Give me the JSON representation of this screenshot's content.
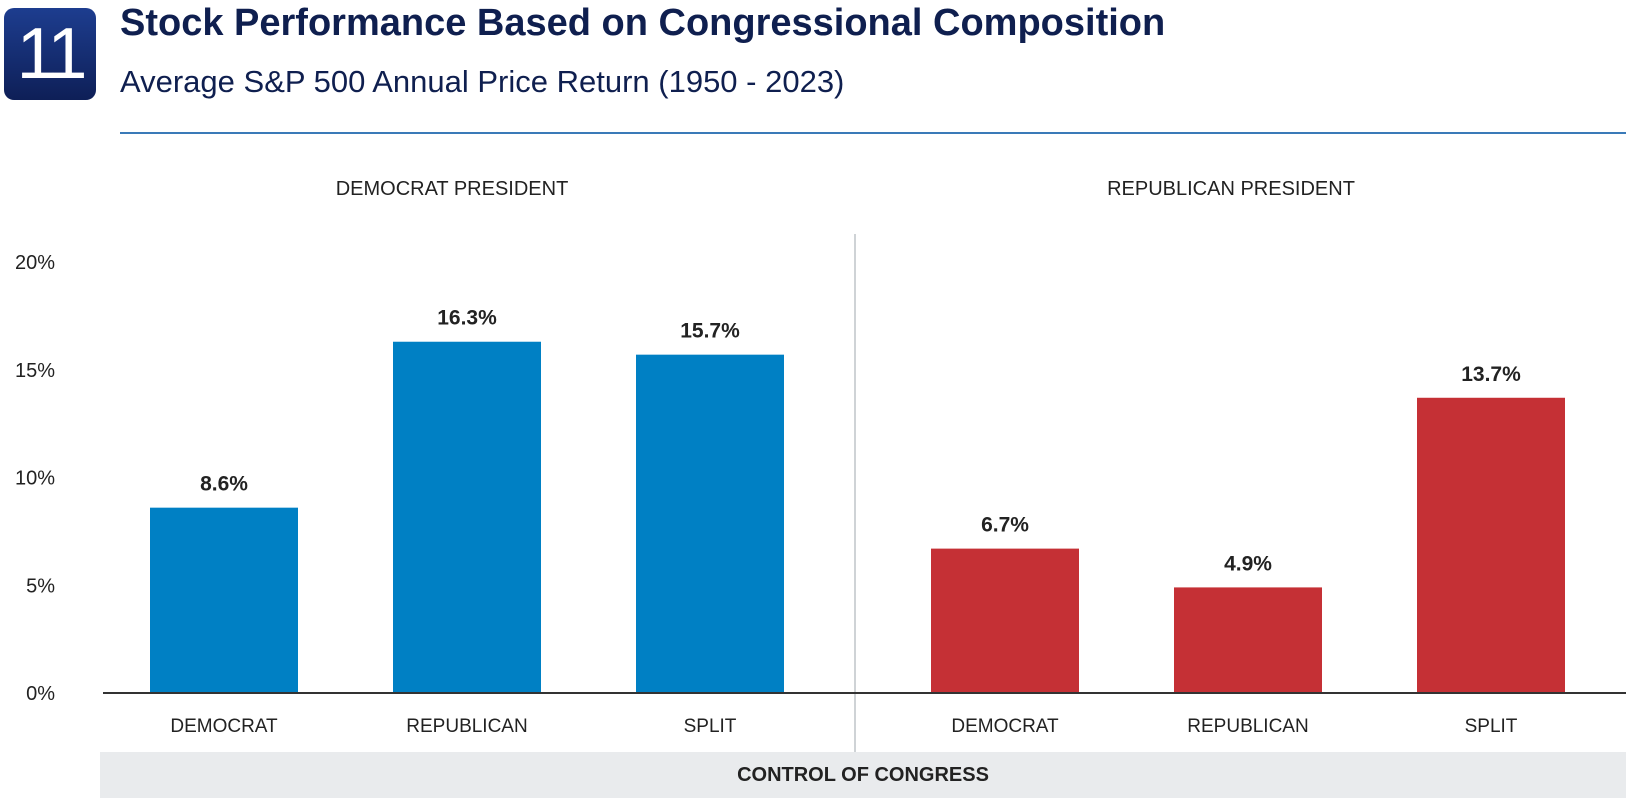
{
  "badge": "11",
  "title": "Stock Performance Based on Congressional Composition",
  "subtitle": "Average S&P 500 Annual Price Return (1950 - 2023)",
  "footer_label": "CONTROL OF CONGRESS",
  "colors": {
    "democrat": "#0080c4",
    "republican": "#c53035",
    "title": "#0f1f4f"
  },
  "chart_data": {
    "type": "bar",
    "title": "Stock Performance Based on Congressional Composition",
    "subtitle": "Average S&P 500 Annual Price Return (1950 - 2023)",
    "xlabel": "CONTROL OF CONGRESS",
    "ylabel": "",
    "ylim": [
      0,
      20
    ],
    "y_ticks": [
      0,
      5,
      10,
      15,
      20
    ],
    "y_tick_labels": [
      "0%",
      "5%",
      "10%",
      "15%",
      "20%"
    ],
    "grid": false,
    "groups": [
      {
        "name": "DEMOCRAT PRESIDENT",
        "color": "#0080c4",
        "categories": [
          "DEMOCRAT",
          "REPUBLICAN",
          "SPLIT"
        ],
        "values": [
          8.6,
          16.3,
          15.7
        ],
        "labels": [
          "8.6%",
          "16.3%",
          "15.7%"
        ]
      },
      {
        "name": "REPUBLICAN PRESIDENT",
        "color": "#c53035",
        "categories": [
          "DEMOCRAT",
          "REPUBLICAN",
          "SPLIT"
        ],
        "values": [
          6.7,
          4.9,
          13.7
        ],
        "labels": [
          "6.7%",
          "4.9%",
          "13.7%"
        ]
      }
    ]
  }
}
